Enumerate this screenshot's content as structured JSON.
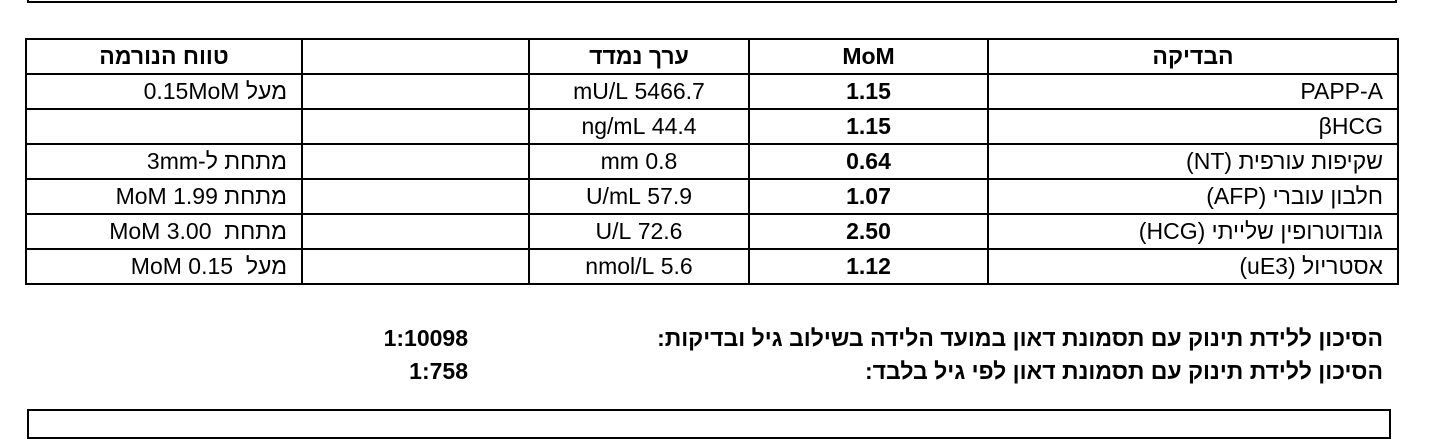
{
  "header": {
    "test": "הבדיקה",
    "mom": "MoM",
    "measured": "ערך נמדד",
    "range": "טווח הנורמה"
  },
  "rows": [
    {
      "test": "PAPP-A",
      "mom": "1.15",
      "measured": "5466.7 mU/L",
      "range": "מעל 0.15MoM"
    },
    {
      "test": "βHCG",
      "mom": "1.15",
      "measured": "44.4 ng/mL"
    },
    {
      "test": "שקיפות עורפית (NT)",
      "mom": "0.64",
      "measured": "0.8 mm",
      "range": "מתחת ל-3mm"
    },
    {
      "test": "חלבון עוברי (AFP)",
      "mom": "1.07",
      "measured": "57.9 U/mL",
      "range": "מתחת 1.99 MoM"
    },
    {
      "test": "גונדוטרופין שלייתי (HCG)",
      "mom": "2.50",
      "measured": "72.6 U/L",
      "range": "מתחת  3.00 MoM"
    },
    {
      "test": "אסטריול (uE3)",
      "mom": "1.12",
      "measured": "5.6 nmol/L",
      "range": "מעל  0.15 MoM"
    }
  ],
  "risks": [
    {
      "label": "הסיכון ללידת תינוק עם תסמונת דאון במועד הלידה בשילוב גיל ובדיקות:",
      "value": "1:10098"
    },
    {
      "label": "הסיכון ללידת תינוק עם תסמונת דאון לפי גיל בלבד:",
      "value": "1:758"
    }
  ]
}
